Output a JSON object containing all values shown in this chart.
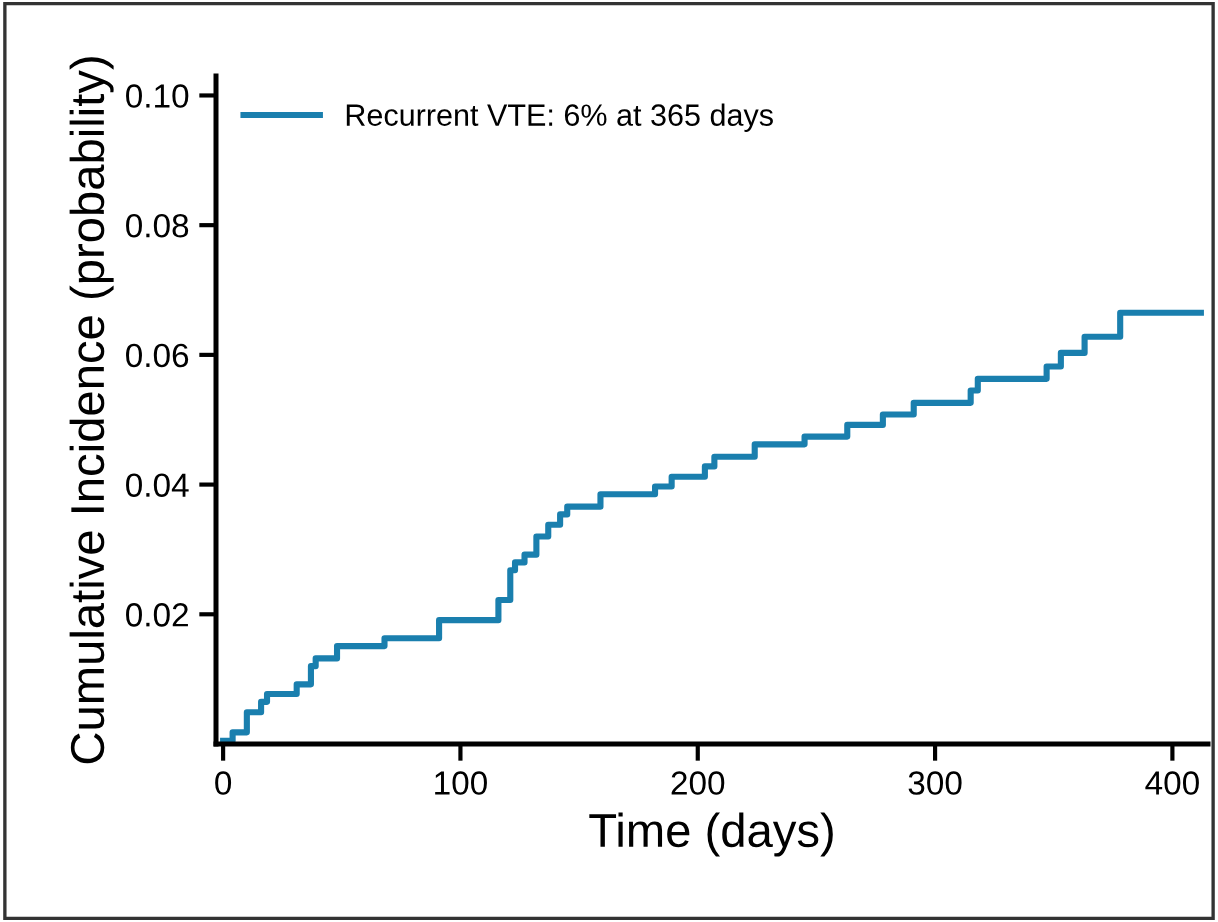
{
  "chart_data": {
    "type": "step",
    "xlabel": "Time (days)",
    "ylabel": "Cumulative Incidence (probability)",
    "xlim": [
      -3,
      415
    ],
    "ylim": [
      0,
      0.103
    ],
    "xticks": [
      0,
      100,
      200,
      300,
      400
    ],
    "yticks": [
      {
        "value": 0.02,
        "label": "0.02"
      },
      {
        "value": 0.04,
        "label": "0.04"
      },
      {
        "value": 0.06,
        "label": "0.06"
      },
      {
        "value": 0.08,
        "label": "0.08"
      },
      {
        "value": 0.1,
        "label": "0.10"
      }
    ],
    "legend": "top left",
    "grid": false,
    "series": [
      {
        "name": "Recurrent VTE: 6% at 365 days",
        "color": "#1a7fae",
        "x": [
          0,
          4,
          10,
          16,
          18.5,
          31,
          37,
          39,
          48,
          68,
          91,
          116,
          121,
          123,
          127,
          132,
          137,
          142,
          145,
          159,
          182,
          189,
          203,
          207,
          224,
          245,
          263,
          278,
          291,
          315,
          318,
          347,
          353,
          363,
          378,
          412
        ],
        "values": [
          0.0005,
          0.0018,
          0.0049,
          0.0065,
          0.0077,
          0.0092,
          0.012,
          0.0132,
          0.0151,
          0.0163,
          0.0191,
          0.0222,
          0.0268,
          0.028,
          0.0292,
          0.032,
          0.0338,
          0.0354,
          0.0366,
          0.0385,
          0.0397,
          0.0412,
          0.0428,
          0.0443,
          0.0462,
          0.0474,
          0.0492,
          0.0508,
          0.0526,
          0.0545,
          0.0563,
          0.0582,
          0.0603,
          0.0628,
          0.0665,
          0.0665
        ]
      }
    ]
  }
}
